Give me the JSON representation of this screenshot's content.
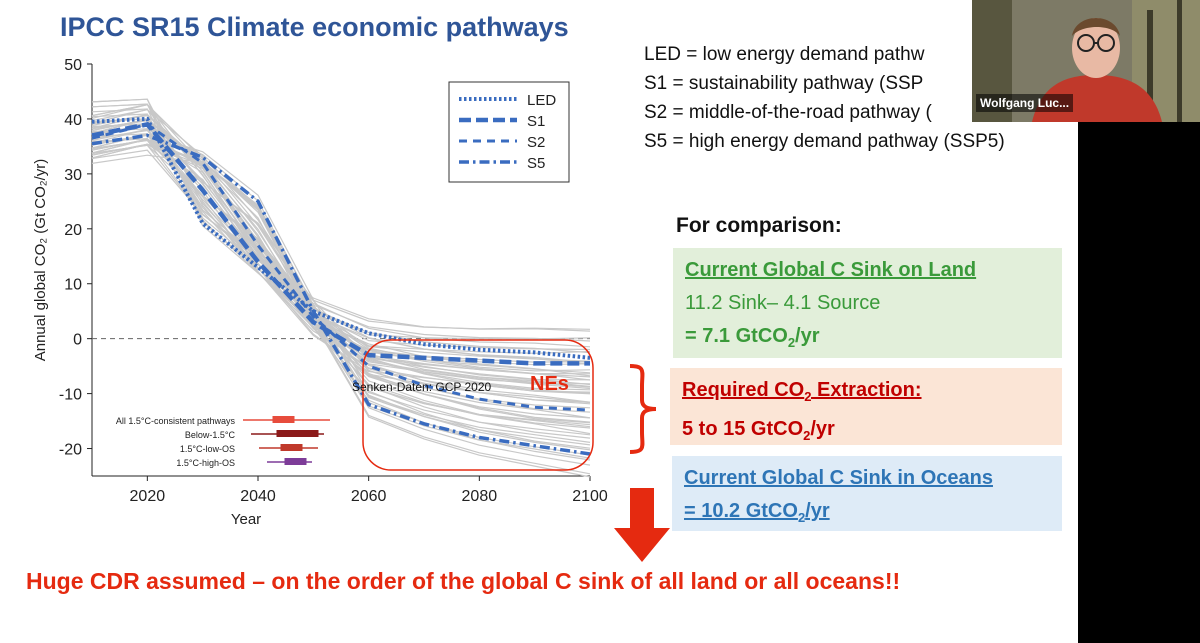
{
  "slide": {
    "title": "IPCC SR15 Climate economic pathways",
    "definitions": [
      "LED = low energy demand pathw",
      "S1 = sustainability pathway (SSP",
      "S2 = middle-of-the-road pathway (",
      "S5 = high energy demand pathway (SSP5)"
    ],
    "comparison_title": "For comparison:",
    "land_box": {
      "heading": "Current Global C Sink on Land",
      "line1": "11.2 Sink– 4.1 Source",
      "line2_prefix": "= 7.1 GtCO",
      "line2_sub": "2",
      "line2_suffix": "/yr"
    },
    "extraction_box": {
      "heading_prefix": "Required CO",
      "heading_sub": "2",
      "heading_suffix": " Extraction:",
      "line_prefix": "5 to 15 GtCO",
      "line_sub": "2",
      "line_suffix": "/yr"
    },
    "ocean_box": {
      "heading": "Current Global C Sink in Oceans",
      "line_prefix": "= 10.2 GtCO",
      "line_sub": "2",
      "line_suffix": "/yr"
    },
    "bottom_text": "Huge CDR assumed – on the order of the global C sink of all land or all oceans!!",
    "annotation_senken": "Senken-Daten: GCP 2020",
    "annotation_nes": "NEs",
    "colors": {
      "title": "#2f5597",
      "pathway_blue": "#3a6cc0",
      "gray_lines": "#c8c8c8",
      "arrow_red": "#e52a10"
    }
  },
  "webcam": {
    "participant_name": "Wolfgang Luc..."
  },
  "chart_data": {
    "type": "line",
    "xlabel": "Year",
    "ylabel": "Annual global CO₂ (Gt CO₂/yr)",
    "xlim": [
      2010,
      2100
    ],
    "ylim": [
      -25,
      50
    ],
    "x_ticks": [
      "2020",
      "2040",
      "2060",
      "2080",
      "2100"
    ],
    "y_ticks": [
      "50",
      "40",
      "30",
      "20",
      "10",
      "0",
      "-10",
      "-20"
    ],
    "x": [
      2010,
      2020,
      2030,
      2040,
      2050,
      2060,
      2070,
      2080,
      2090,
      2100
    ],
    "series": [
      {
        "name": "LED",
        "style": "dotted",
        "values": [
          39.5,
          40,
          21,
          13,
          5,
          1,
          -1,
          -2,
          -2.5,
          -3.5
        ]
      },
      {
        "name": "S1",
        "style": "dashed",
        "values": [
          37,
          39,
          27,
          14,
          3,
          -3,
          -3.5,
          -4,
          -4.5,
          -4.5
        ]
      },
      {
        "name": "S2",
        "style": "dash-short",
        "values": [
          36.5,
          39,
          32,
          17,
          4,
          -5,
          -8.5,
          -11,
          -12.5,
          -13
        ]
      },
      {
        "name": "S5",
        "style": "dash-dot",
        "values": [
          35.5,
          37,
          33,
          25,
          5,
          -12,
          -15.5,
          -18,
          -19.5,
          -21
        ]
      }
    ],
    "inset_legend": {
      "labels": [
        "All 1.5°C-consistent pathways",
        "Below-1.5°C",
        "1.5°C-low-OS",
        "1.5°C-high-OS"
      ]
    },
    "grid": false,
    "legend_position": "top-right"
  }
}
